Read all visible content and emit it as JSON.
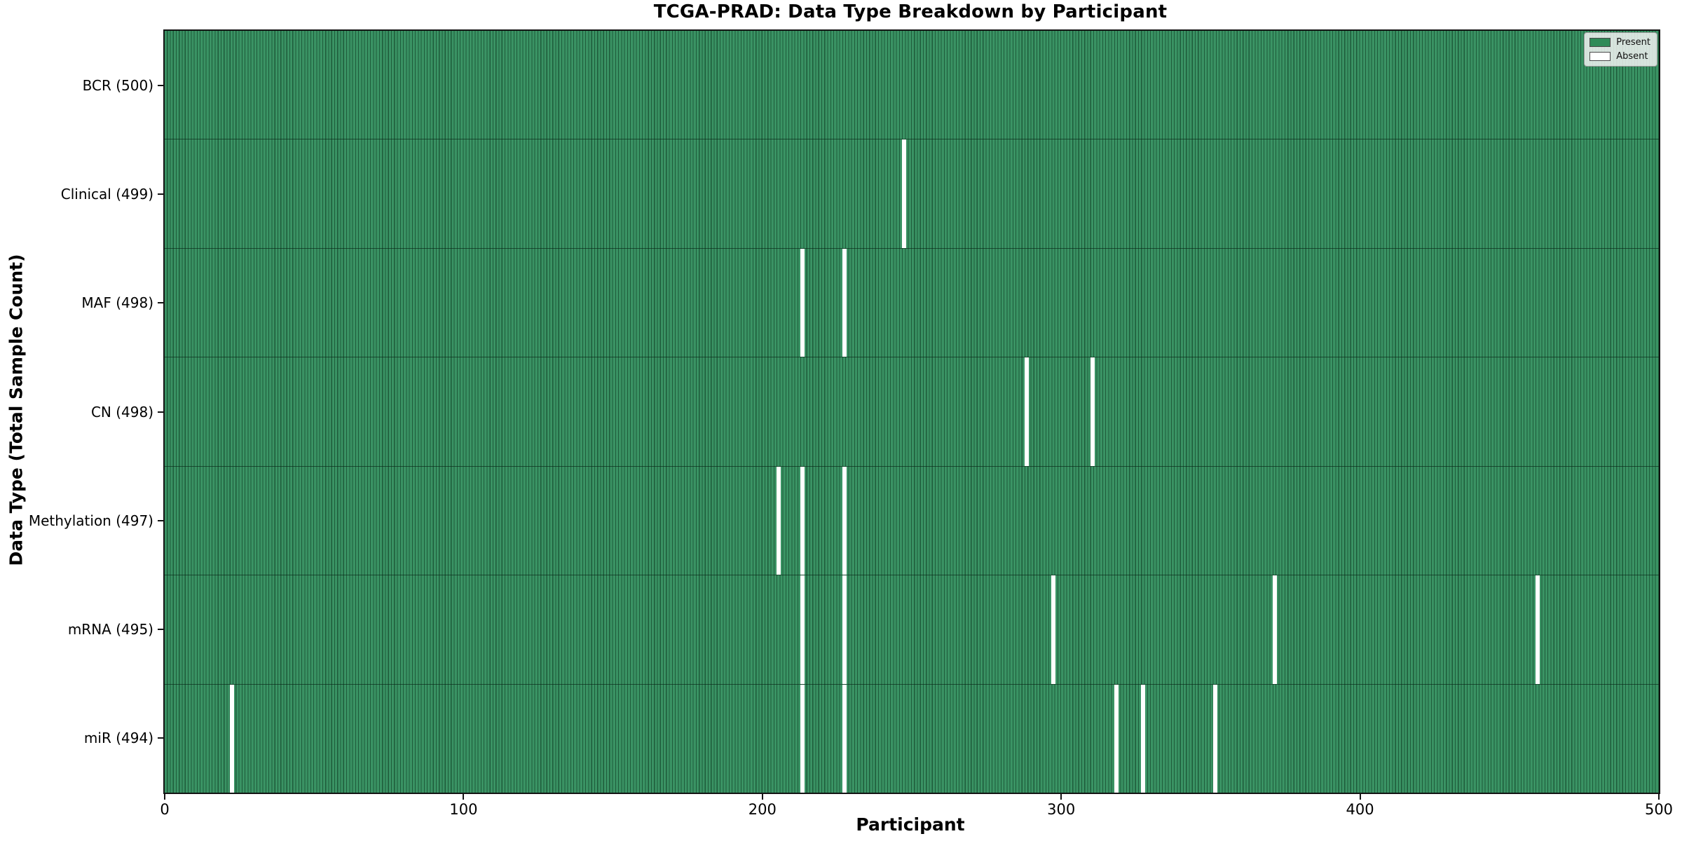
{
  "chart_data": {
    "type": "heatmap",
    "title": "TCGA-PRAD: Data Type Breakdown by Participant",
    "xlabel": "Participant",
    "ylabel": "Data Type (Total Sample Count)",
    "x_min": 0,
    "x_max": 500,
    "x_ticks": [
      0,
      100,
      200,
      300,
      400,
      500
    ],
    "n_participants": 500,
    "grid": false,
    "colors": {
      "present_fill": "#3a9364",
      "bar_edge": "#1e5b3a",
      "absent_fill": "#ffffff",
      "plot_border": "#141414"
    },
    "legend": {
      "position": "upper-right",
      "entries": [
        {
          "label": "Present",
          "color": "#2e8b57"
        },
        {
          "label": "Absent",
          "color": "#ffffff"
        }
      ]
    },
    "rows": [
      {
        "label": "BCR (500)",
        "data_type": "BCR",
        "total": 500,
        "absent_participants": []
      },
      {
        "label": "Clinical (499)",
        "data_type": "Clinical",
        "total": 499,
        "absent_participants": [
          247
        ]
      },
      {
        "label": "MAF (498)",
        "data_type": "MAF",
        "total": 498,
        "absent_participants": [
          213,
          227
        ]
      },
      {
        "label": "CN (498)",
        "data_type": "CN",
        "total": 498,
        "absent_participants": [
          288,
          310
        ]
      },
      {
        "label": "Methylation (497)",
        "data_type": "Methylation",
        "total": 497,
        "absent_participants": [
          205,
          213,
          227
        ]
      },
      {
        "label": "mRNA (495)",
        "data_type": "mRNA",
        "total": 495,
        "absent_participants": [
          213,
          227,
          297,
          371,
          459
        ]
      },
      {
        "label": "miR (494)",
        "data_type": "miR",
        "total": 494,
        "absent_participants": [
          22,
          213,
          227,
          318,
          327,
          351
        ]
      }
    ]
  }
}
